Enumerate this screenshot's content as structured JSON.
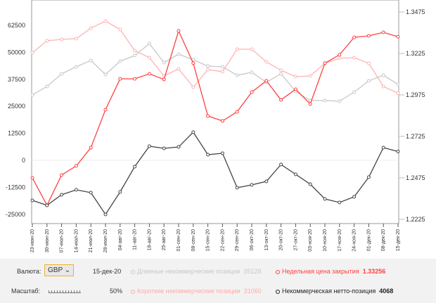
{
  "chart_data": {
    "type": "line",
    "x": [
      "23-июн-20",
      "30-июн-20",
      "07-июл-20",
      "14-июл-20",
      "21-июл-20",
      "28-июл-20",
      "04-авг-20",
      "11-авг-20",
      "18-авг-20",
      "25-авг-20",
      "01-сен-20",
      "08-сен-20",
      "15-сен-20",
      "22-сен-20",
      "29-сен-20",
      "06-окт-20",
      "13-окт-20",
      "20-окт-20",
      "27-окт-20",
      "03-ноя-20",
      "10-ноя-20",
      "17-ноя-20",
      "24-ноя-20",
      "01-дек-20",
      "08-дек-20",
      "15-дек-20"
    ],
    "left_axis": {
      "ylim": [
        -31000,
        75000
      ],
      "ticks": [
        "62500",
        "50000",
        "37500",
        "25000",
        "12500",
        "0",
        "-12500",
        "-25000"
      ]
    },
    "right_axis": {
      "ylim": [
        1.2213,
        1.3487
      ],
      "ticks": [
        "1.3475",
        "1.3225",
        "1.2975",
        "1.2725",
        "1.2475",
        "1.2225"
      ]
    },
    "series": [
      {
        "name": "Длинные некоммерческие позиции",
        "axis": "left",
        "color": "#c8c8c8",
        "values": [
          30270,
          34180,
          40040,
          43290,
          46220,
          39710,
          45900,
          48500,
          54030,
          45250,
          49150,
          46550,
          43620,
          43290,
          39380,
          40690,
          36130,
          40040,
          31900,
          27670,
          27670,
          27340,
          31570,
          36780,
          39380,
          35128
        ]
      },
      {
        "name": "Короткие некоммерческие позиции",
        "axis": "left",
        "color": "#ffb3b3",
        "values": [
          49800,
          55340,
          55990,
          56310,
          61190,
          64450,
          60540,
          50780,
          47520,
          39060,
          42320,
          33850,
          41990,
          41010,
          51430,
          51430,
          45570,
          41660,
          38730,
          39060,
          44920,
          47200,
          47520,
          44920,
          34180,
          31060
        ]
      },
      {
        "name": "Недельная цена закрытия",
        "axis": "right",
        "color": "#ff4040",
        "values": [
          1.2475,
          1.231,
          1.2492,
          1.2547,
          1.2657,
          1.2886,
          1.3072,
          1.3072,
          1.3102,
          1.3068,
          1.3361,
          1.3166,
          1.2848,
          1.2818,
          1.2873,
          1.2992,
          1.306,
          1.2945,
          1.3009,
          1.292,
          1.3166,
          1.3217,
          1.3322,
          1.3331,
          1.3352,
          1.33256
        ]
      },
      {
        "name": "Некоммерческая нетто-позиция",
        "axis": "left",
        "color": "#444444",
        "values": [
          -18550,
          -20830,
          -15950,
          -13670,
          -14970,
          -25060,
          -14650,
          -2930,
          6510,
          5530,
          6180,
          13020,
          2600,
          3250,
          -12700,
          -11390,
          -9770,
          -1950,
          -6510,
          -11070,
          -17900,
          -19530,
          -16930,
          -7810,
          5860,
          4068
        ]
      }
    ]
  },
  "controls": {
    "currency_label": "Валюта:",
    "currency_value": "GBP",
    "date": "15-дек-20",
    "scale_label": "Масштаб:",
    "scale_value": "50%"
  },
  "legend": {
    "long_label": "Длинные некоммерческие позиции",
    "long_value": "35128",
    "short_label": "Короткие некоммерческие позиции",
    "short_value": "31060",
    "price_label": "Недельная цена закрытия",
    "price_value": "1.33256",
    "net_label": "Некоммерческая нетто-позиция",
    "net_value": "4068"
  }
}
